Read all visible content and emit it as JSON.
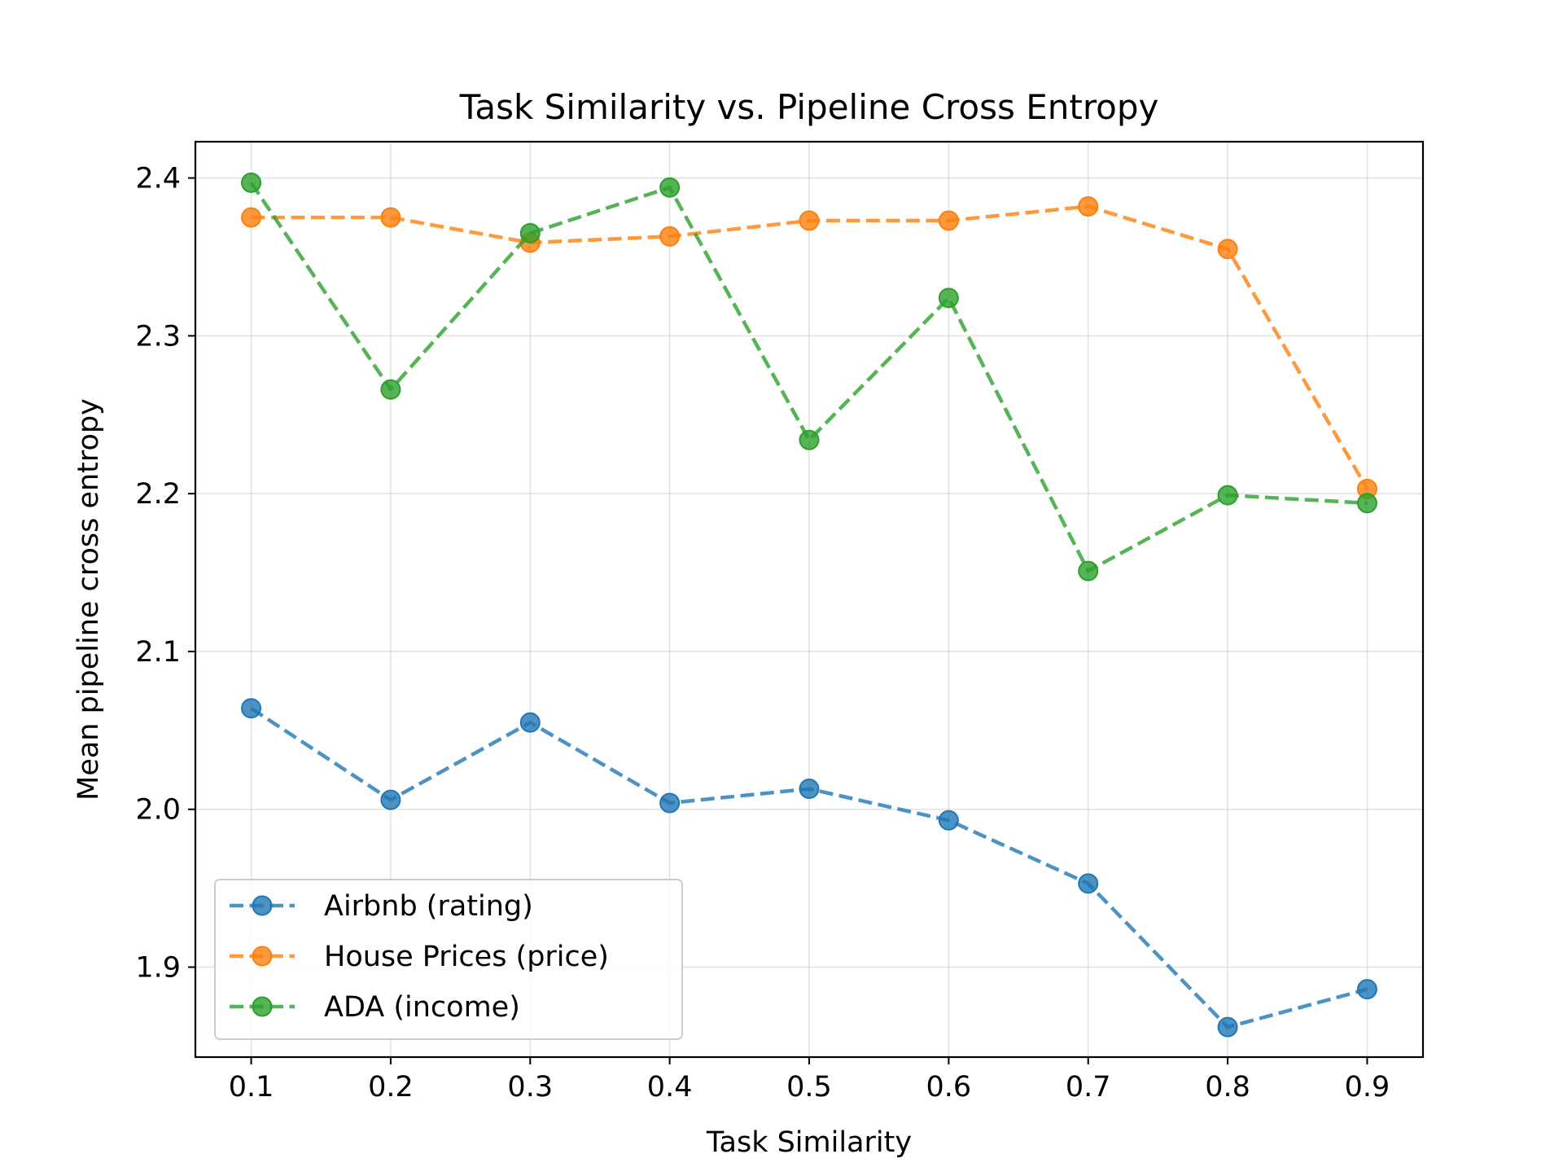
{
  "chart_data": {
    "type": "line",
    "title": "Task Similarity vs. Pipeline Cross Entropy",
    "xlabel": "Task Similarity",
    "ylabel": "Mean pipeline cross entropy",
    "x": [
      0.1,
      0.2,
      0.3,
      0.4,
      0.5,
      0.6,
      0.7,
      0.8,
      0.9
    ],
    "x_ticks": [
      "0.1",
      "0.2",
      "0.3",
      "0.4",
      "0.5",
      "0.6",
      "0.7",
      "0.8",
      "0.9"
    ],
    "y_ticks": [
      "1.9",
      "2.0",
      "2.1",
      "2.2",
      "2.3",
      "2.4"
    ],
    "y_tick_values": [
      1.9,
      2.0,
      2.1,
      2.2,
      2.3,
      2.4
    ],
    "xlim": [
      0.06,
      0.94
    ],
    "ylim": [
      1.843,
      2.423
    ],
    "grid": true,
    "legend_position": "lower-left",
    "line_style": "dashed",
    "marker": "circle",
    "series": [
      {
        "name": "Airbnb (rating)",
        "color": "#1f77b4",
        "values": [
          2.064,
          2.006,
          2.055,
          2.004,
          2.013,
          1.993,
          1.953,
          1.862,
          1.886
        ]
      },
      {
        "name": "House Prices (price)",
        "color": "#ff7f0e",
        "values": [
          2.375,
          2.375,
          2.359,
          2.363,
          2.373,
          2.373,
          2.382,
          2.355,
          2.203
        ]
      },
      {
        "name": "ADA (income)",
        "color": "#2ca02c",
        "values": [
          2.397,
          2.266,
          2.365,
          2.394,
          2.234,
          2.324,
          2.151,
          2.199,
          2.194
        ]
      }
    ]
  }
}
